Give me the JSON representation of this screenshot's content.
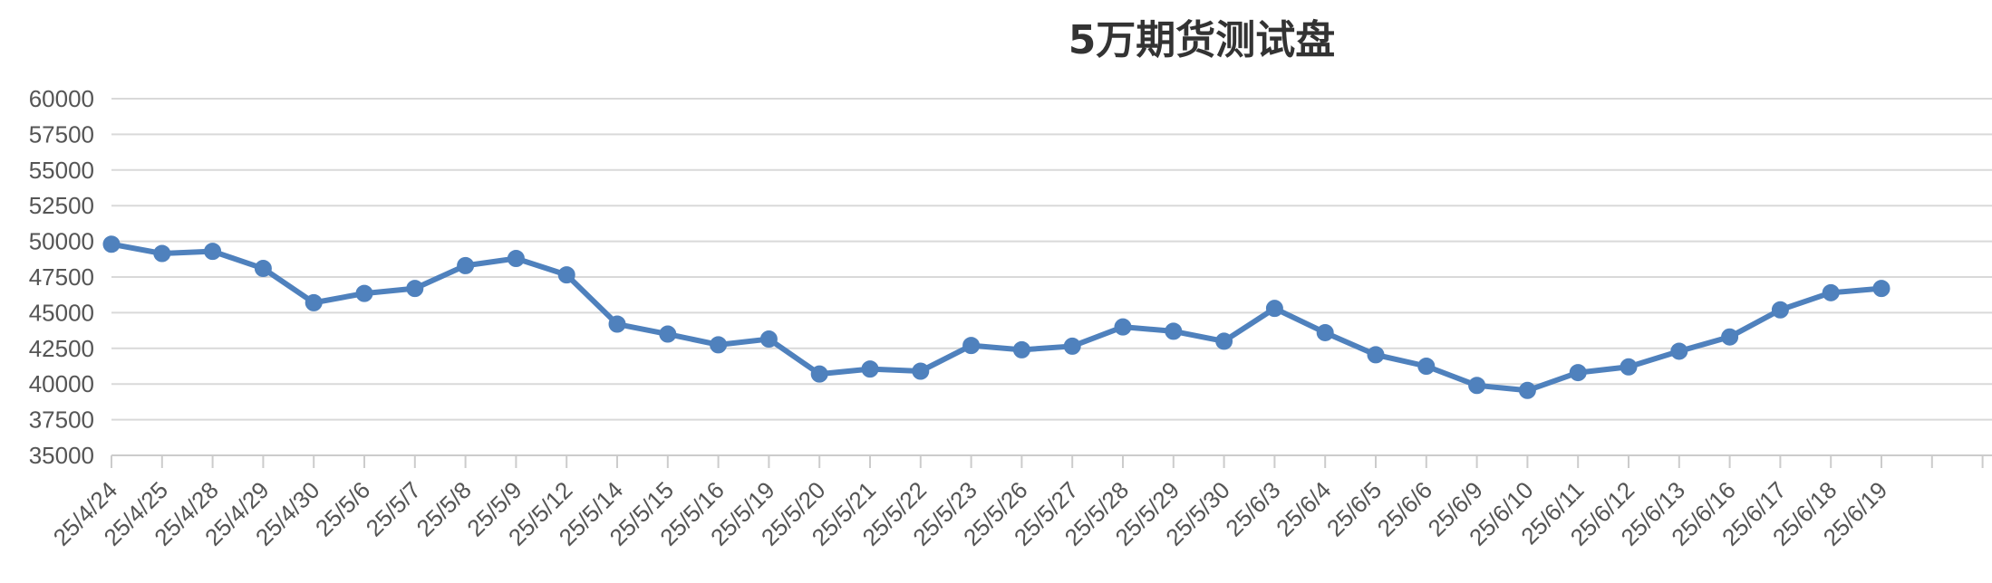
{
  "chart_data": {
    "type": "line",
    "title": "5万期货测试盘",
    "xlabel": "",
    "ylabel": "",
    "ylim": [
      35000,
      60000
    ],
    "yticks": [
      35000,
      37500,
      40000,
      42500,
      45000,
      47500,
      50000,
      52500,
      55000,
      57500,
      60000
    ],
    "grid": true,
    "legend": "none",
    "line_color": "#4f81bd",
    "categories": [
      "25/4/24",
      "25/4/25",
      "25/4/28",
      "25/4/29",
      "25/4/30",
      "25/5/6",
      "25/5/7",
      "25/5/8",
      "25/5/9",
      "25/5/12",
      "25/5/14",
      "25/5/15",
      "25/5/16",
      "25/5/19",
      "25/5/20",
      "25/5/21",
      "25/5/22",
      "25/5/23",
      "25/5/26",
      "25/5/27",
      "25/5/28",
      "25/5/29",
      "25/5/30",
      "25/6/3",
      "25/6/4",
      "25/6/5",
      "25/6/6",
      "25/6/9",
      "25/6/10",
      "25/6/11",
      "25/6/12",
      "25/6/13",
      "25/6/16",
      "25/6/17",
      "25/6/18",
      "25/6/19"
    ],
    "series": [
      {
        "name": "",
        "values": [
          49800,
          49150,
          49300,
          48100,
          45700,
          46350,
          46700,
          48300,
          48800,
          47650,
          44200,
          43500,
          42750,
          43150,
          40700,
          41050,
          40900,
          42700,
          42400,
          42650,
          44000,
          43700,
          43000,
          45300,
          43600,
          42050,
          41250,
          39900,
          39550,
          40800,
          41200,
          42300,
          43300,
          45200,
          46400,
          46700
        ]
      }
    ]
  }
}
